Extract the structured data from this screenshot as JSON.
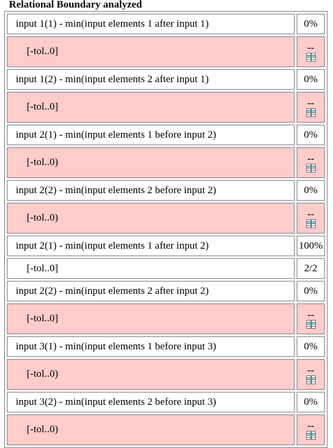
{
  "title": "Relational Boundary analyzed",
  "checks": [
    {
      "label": "input 1(1) - min(input elements 1 after input 1)",
      "value": "0%",
      "ranges": [
        {
          "label": "[-tol..0]",
          "value": "--",
          "color": "#ffcccc"
        }
      ]
    },
    {
      "label": "input 1(2) - min(input elements 2 after input 1)",
      "value": "0%",
      "ranges": [
        {
          "label": "[-tol..0]",
          "value": "--",
          "color": "#ffcccc"
        }
      ]
    },
    {
      "label": "input 2(1) - min(input elements 1 before input 2)",
      "value": "0%",
      "ranges": [
        {
          "label": "[-tol..0)",
          "value": "--",
          "color": "#ffcccc"
        }
      ]
    },
    {
      "label": "input 2(2) - min(input elements 2 before input 2)",
      "value": "0%",
      "ranges": [
        {
          "label": "[-tol..0)",
          "value": "--",
          "color": "#ffcccc"
        }
      ]
    },
    {
      "label": "input 2(1) - min(input elements 1 after input 2)",
      "value": "100%",
      "ranges": [
        {
          "label": "[-tol..0]",
          "value": "2/2",
          "color": "#ffffff"
        }
      ]
    },
    {
      "label": "input 2(2) - min(input elements 2 after input 2)",
      "value": "0%",
      "ranges": [
        {
          "label": "[-tol..0]",
          "value": "--",
          "color": "#ffcccc"
        }
      ]
    },
    {
      "label": "input 3(1) - min(input elements 1 before input 3)",
      "value": "0%",
      "ranges": [
        {
          "label": "[-tol..0)",
          "value": "--",
          "color": "#ffcccc"
        }
      ]
    },
    {
      "label": "input 3(2) - min(input elements 2 before input 3)",
      "value": "0%",
      "ranges": [
        {
          "label": "[-tol..0)",
          "value": "--",
          "color": "#ffcccc"
        }
      ]
    }
  ]
}
